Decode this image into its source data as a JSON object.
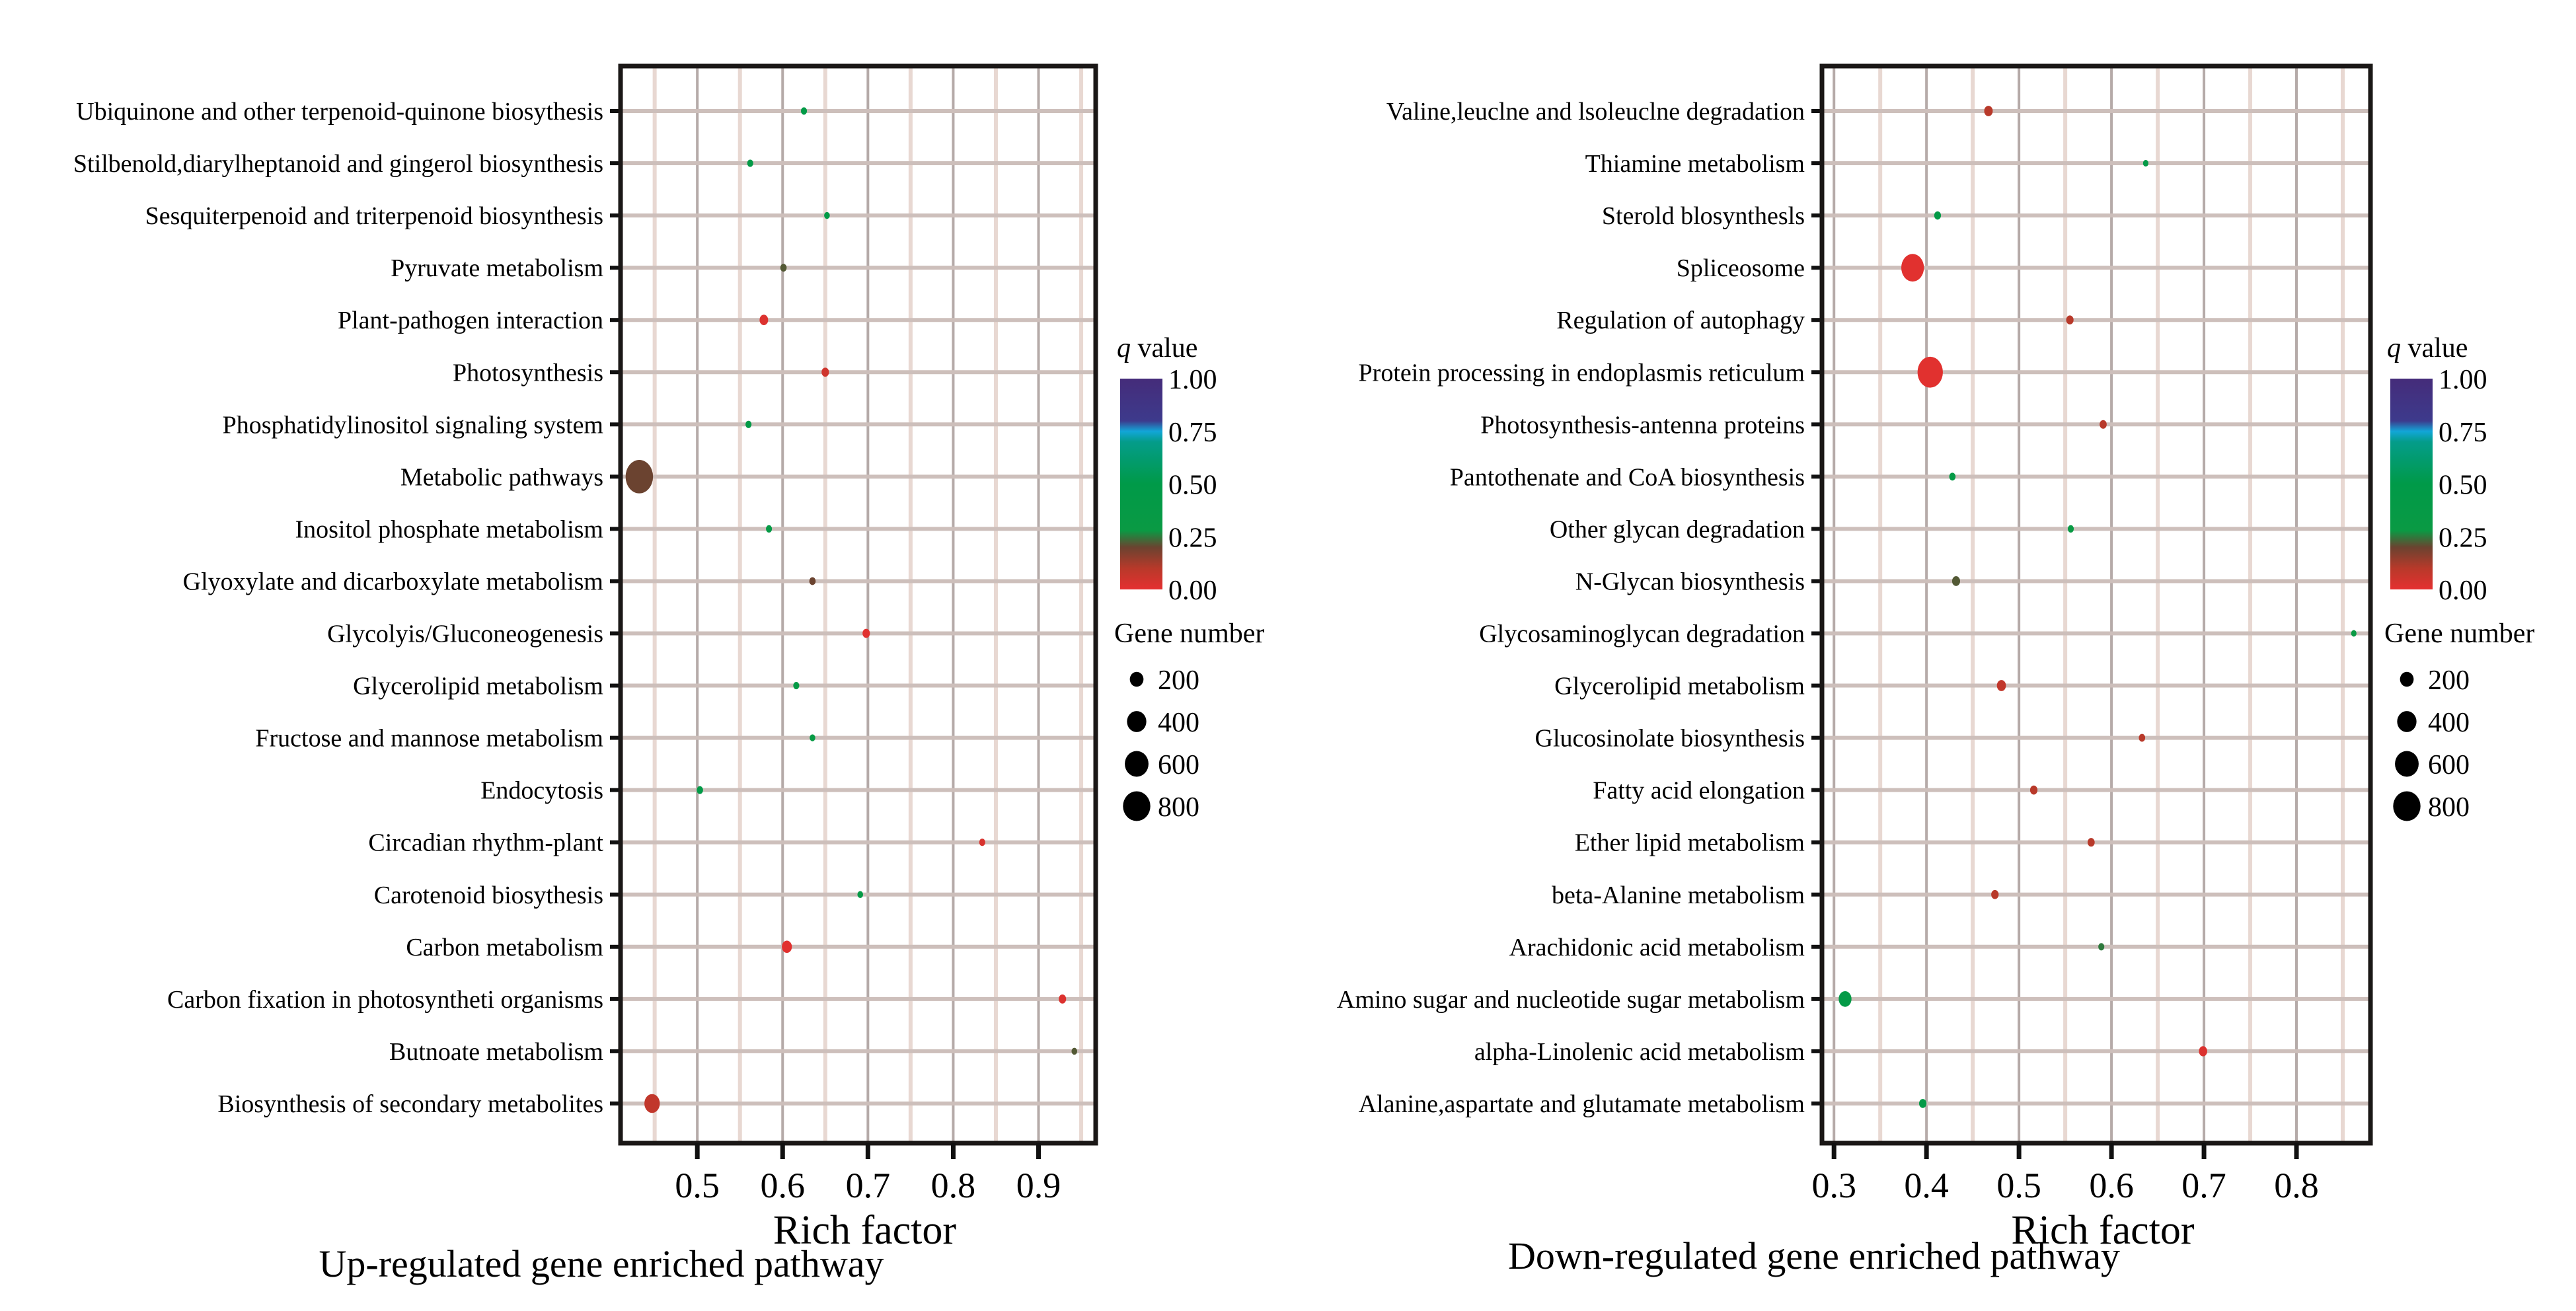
{
  "chart_data": [
    {
      "type": "scatter",
      "subtype": "bubble",
      "caption": "Up-regulated gene enriched pathway",
      "xlabel": "Rich factor",
      "ylabel": "",
      "xlim": [
        0.41,
        0.967
      ],
      "xticks": [
        "0.5",
        "0.6",
        "0.7",
        "0.8",
        "0.9"
      ],
      "xtick_values": [
        0.5,
        0.6,
        0.7,
        0.8,
        0.9
      ],
      "grid": true,
      "legend_position": "right",
      "categories": [
        "Ubiquinone and other terpenoid-quinone biosythesis",
        "Stilbenold,diarylheptanoid and gingerol biosynthesis",
        "Sesquiterpenoid and triterpenoid biosynthesis",
        "Pyruvate metabolism",
        "Plant-pathogen interaction",
        "Photosynthesis",
        "Phosphatidylinositol signaling system",
        "Metabolic pathways",
        "Inositol phosphate metabolism",
        "Glyoxylate and dicarboxylate metabolism",
        "Glycolyis/Gluconeogenesis",
        "Glycerolipid metabolism",
        "Fructose and mannose metabolism",
        "Endocytosis",
        "Circadian rhythm-plant",
        "Carotenoid biosythesis",
        "Carbon metabolism",
        "Carbon fixation in photosyntheti organisms",
        "Butnoate metabolism",
        "Biosynthesis of secondary metabolites"
      ],
      "rich_factor": [
        0.625,
        0.562,
        0.652,
        0.601,
        0.578,
        0.65,
        0.56,
        0.432,
        0.584,
        0.635,
        0.698,
        0.616,
        0.635,
        0.503,
        0.834,
        0.691,
        0.605,
        0.928,
        0.942,
        0.447
      ],
      "gene_number": [
        40,
        40,
        35,
        45,
        80,
        60,
        40,
        820,
        40,
        45,
        60,
        40,
        35,
        45,
        40,
        35,
        110,
        60,
        35,
        260
      ],
      "q_value": [
        0.45,
        0.42,
        0.45,
        0.22,
        0.02,
        0.05,
        0.42,
        0.2,
        0.4,
        0.2,
        0.01,
        0.4,
        0.35,
        0.45,
        0.03,
        0.4,
        0.01,
        0.02,
        0.22,
        0.08
      ]
    },
    {
      "type": "scatter",
      "subtype": "bubble",
      "caption": "Down-regulated gene enriched pathway",
      "xlabel": "Rich factor",
      "ylabel": "",
      "xlim": [
        0.287,
        0.88
      ],
      "xticks": [
        "0.3",
        "0.4",
        "0.5",
        "0.6",
        "0.7",
        "0.8"
      ],
      "xtick_values": [
        0.3,
        0.4,
        0.5,
        0.6,
        0.7,
        0.8
      ],
      "grid": true,
      "legend_position": "right",
      "categories": [
        "Valine,leuclne and lsoleuclne degradation",
        "Thiamine metabolism",
        "Sterold blosynthesls",
        "Spliceosome",
        "Regulation of autophagy",
        "Protein processing in endoplasmis reticulum",
        "Photosynthesis-antenna proteins",
        "Pantothenate and CoA biosynthesis",
        "Other glycan degradation",
        "N-Glycan biosynthesis",
        "Glycosaminoglycan degradation",
        "Glycerolipid metabolism",
        "Glucosinolate biosynthesis",
        "Fatty acid elongation",
        "Ether lipid metabolism",
        "beta-Alanine metabolism",
        "Arachidonic acid metabolism",
        "Amino sugar and nucleotide sugar metabolism",
        "alpha-Linolenic acid metabolism",
        "Alanine,aspartate and glutamate metabolism"
      ],
      "rich_factor": [
        0.467,
        0.637,
        0.412,
        0.385,
        0.555,
        0.404,
        0.591,
        0.428,
        0.556,
        0.432,
        0.862,
        0.481,
        0.633,
        0.516,
        0.578,
        0.474,
        0.589,
        0.312,
        0.699,
        0.396
      ],
      "gene_number": [
        80,
        30,
        50,
        560,
        60,
        700,
        55,
        45,
        40,
        70,
        30,
        90,
        45,
        60,
        55,
        60,
        40,
        180,
        75,
        60
      ],
      "q_value": [
        0.1,
        0.42,
        0.42,
        0.01,
        0.1,
        0.01,
        0.1,
        0.4,
        0.3,
        0.22,
        0.28,
        0.08,
        0.1,
        0.1,
        0.1,
        0.1,
        0.25,
        0.42,
        0.02,
        0.42
      ]
    }
  ],
  "legend": {
    "color_title_italic": "q",
    "color_title_rest": " value",
    "color_ticks": [
      "1.00",
      "0.75",
      "0.50",
      "0.25",
      "0.00"
    ],
    "color_tick_values": [
      1.0,
      0.75,
      0.5,
      0.25,
      0.0
    ],
    "color_stops": [
      {
        "q": 0.0,
        "color": "#e53030"
      },
      {
        "q": 0.1,
        "color": "#b8392a"
      },
      {
        "q": 0.2,
        "color": "#6b4330"
      },
      {
        "q": 0.28,
        "color": "#0a9a44"
      },
      {
        "q": 0.5,
        "color": "#009a48"
      },
      {
        "q": 0.7,
        "color": "#049c8a"
      },
      {
        "q": 0.75,
        "color": "#12a6d8"
      },
      {
        "q": 0.8,
        "color": "#3d3a8c"
      },
      {
        "q": 1.0,
        "color": "#452c7a"
      }
    ],
    "size_title": "Gene number",
    "size_ticks": [
      "200",
      "400",
      "600",
      "800"
    ],
    "size_tick_values": [
      200,
      400,
      600,
      800
    ]
  }
}
